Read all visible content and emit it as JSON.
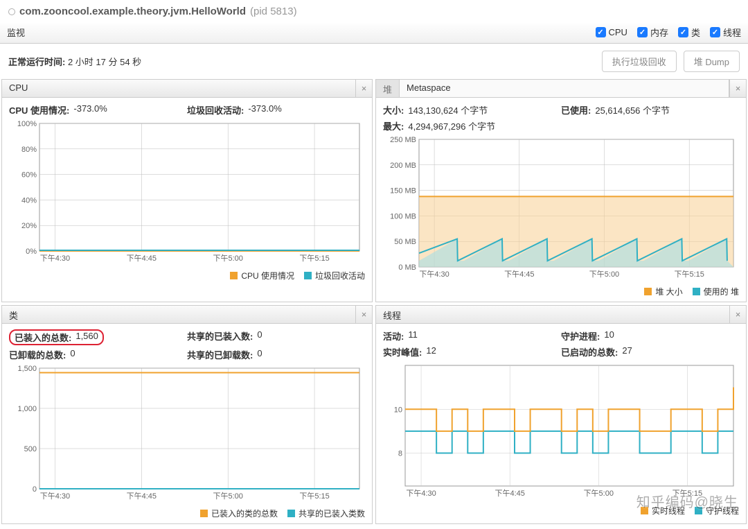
{
  "titlebar": {
    "title": "com.zooncool.example.theory.jvm.HelloWorld",
    "pid": "(pid 5813)"
  },
  "monitor": {
    "label": "监视",
    "checks": [
      {
        "label": "CPU"
      },
      {
        "label": "内存"
      },
      {
        "label": "类"
      },
      {
        "label": "线程"
      }
    ]
  },
  "uptime": {
    "label": "正常运行时间:",
    "value": "2 小时 17 分 54 秒"
  },
  "buttons": {
    "gc": "执行垃圾回收",
    "dump": "堆 Dump"
  },
  "colors": {
    "orange": "#f0a22e",
    "orange_fill": "#f7cf93",
    "teal": "#2fb0c4",
    "teal_fill": "#a6dde6",
    "grid": "#c8c8c8",
    "axis": "#888888",
    "chart_border": "#999999"
  },
  "xlabels": [
    "下午4:30",
    "下午4:45",
    "下午5:00",
    "下午5:15"
  ],
  "panels": {
    "cpu": {
      "title": "CPU",
      "stats": [
        {
          "k": "CPU 使用情况:",
          "v": "-373.0%"
        },
        {
          "k": "垃圾回收活动:",
          "v": "-373.0%"
        }
      ],
      "yticks": [
        "100%",
        "80%",
        "60%",
        "40%",
        "20%",
        "0%"
      ],
      "ymax": 100,
      "series": {
        "orange": 0,
        "teal": 0
      },
      "legend": [
        {
          "color": "#f0a22e",
          "label": "CPU 使用情况"
        },
        {
          "color": "#2fb0c4",
          "label": "垃圾回收活动"
        }
      ]
    },
    "heap": {
      "tabs": {
        "inactive": "堆",
        "active": "Metaspace"
      },
      "stats": [
        {
          "k": "大小:",
          "v": "143,130,624 个字节"
        },
        {
          "k": "已使用:",
          "v": "25,614,656 个字节"
        },
        {
          "k": "最大:",
          "v": "4,294,967,296 个字节"
        }
      ],
      "yticks": [
        "250 MB",
        "200 MB",
        "150 MB",
        "100 MB",
        "50 MB",
        "0 MB"
      ],
      "ymax": 250,
      "size_line": 138,
      "sawtooth": {
        "low": 12,
        "high": 55,
        "cycles": 7
      },
      "legend": [
        {
          "color": "#f0a22e",
          "label": "堆 大小"
        },
        {
          "color": "#2fb0c4",
          "label": "使用的 堆"
        }
      ]
    },
    "classes": {
      "title": "类",
      "stats": [
        {
          "k": "已装入的总数:",
          "v": "1,560",
          "hl": true
        },
        {
          "k": "共享的已装入数:",
          "v": "0"
        },
        {
          "k": "已卸载的总数:",
          "v": "0"
        },
        {
          "k": "共享的已卸载数:",
          "v": "0"
        }
      ],
      "yticks": [
        "1,500",
        "1,000",
        "500",
        "0"
      ],
      "ymax": 1600,
      "series": {
        "orange": 1540,
        "teal": 0
      },
      "legend": [
        {
          "color": "#f0a22e",
          "label": "已装入的类的总数"
        },
        {
          "color": "#2fb0c4",
          "label": "共享的已装入类数"
        }
      ]
    },
    "threads": {
      "title": "线程",
      "stats": [
        {
          "k": "活动:",
          "v": "11"
        },
        {
          "k": "守护进程:",
          "v": "10"
        },
        {
          "k": "实时峰值:",
          "v": "12"
        },
        {
          "k": "已启动的总数:",
          "v": "27"
        }
      ],
      "yticks": [
        "10",
        "8"
      ],
      "yvals": [
        10,
        8
      ],
      "ymin": 6.5,
      "ymax": 12,
      "legend": [
        {
          "color": "#f0a22e",
          "label": "实时线程"
        },
        {
          "color": "#2fb0c4",
          "label": "守护线程"
        }
      ]
    }
  },
  "watermark": "知乎编码@晓生"
}
